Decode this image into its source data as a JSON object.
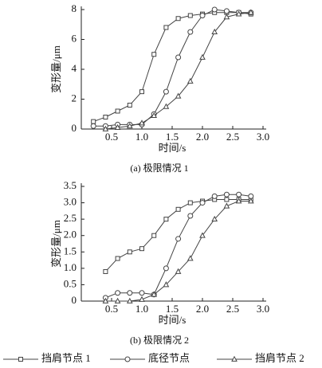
{
  "chart_data": [
    {
      "type": "line",
      "title": "(a) 极限情况 1",
      "x_label": "时间/s",
      "y_label": "变形量/μm",
      "x": [
        0.2,
        0.4,
        0.6,
        0.8,
        1.0,
        1.2,
        1.4,
        1.6,
        1.8,
        2.0,
        2.2,
        2.4,
        2.6,
        2.8
      ],
      "xlim": [
        0,
        3
      ],
      "xticks": [
        0.5,
        {
          "value": 1,
          "label": "1.0"
        },
        1.5,
        {
          "value": 2,
          "label": "2.0"
        },
        2.5,
        {
          "value": 3,
          "label": "3.0"
        }
      ],
      "ylim": [
        0,
        8
      ],
      "yticks": [
        0,
        2,
        4,
        6,
        8
      ],
      "series": [
        {
          "color": "#444444",
          "marker": "square",
          "values": [
            0.5,
            0.8,
            1.2,
            1.6,
            2.5,
            5.0,
            6.8,
            7.4,
            7.6,
            7.7,
            7.8,
            7.8,
            7.8,
            7.7
          ]
        },
        {
          "color": "#444444",
          "marker": "circle",
          "values": [
            0.2,
            0.2,
            0.3,
            0.3,
            0.3,
            1.0,
            2.5,
            4.8,
            6.5,
            7.6,
            8.0,
            7.9,
            7.8,
            7.8
          ]
        },
        {
          "color": "#444444",
          "marker": "triangle",
          "values": [
            null,
            0.0,
            0.1,
            0.2,
            0.4,
            0.9,
            1.5,
            2.2,
            3.2,
            4.8,
            6.5,
            7.5,
            7.7,
            7.8
          ]
        }
      ]
    },
    {
      "type": "line",
      "title": "(b) 极限情况 2",
      "x_label": "时间/s",
      "y_label": "变形量/μm",
      "x": [
        0.2,
        0.4,
        0.6,
        0.8,
        1.0,
        1.2,
        1.4,
        1.6,
        1.8,
        2.0,
        2.2,
        2.4,
        2.6,
        2.8
      ],
      "xlim": [
        0,
        3
      ],
      "xticks": [
        0.5,
        {
          "value": 1,
          "label": "1.0"
        },
        1.5,
        {
          "value": 2,
          "label": "2.0"
        },
        2.5,
        {
          "value": 3,
          "label": "3.0"
        }
      ],
      "ylim": [
        0,
        3.5
      ],
      "yticks": [
        0,
        0.5,
        {
          "value": 1,
          "label": "1.0"
        },
        1.5,
        {
          "value": 2,
          "label": "2.0"
        },
        2.5,
        {
          "value": 3,
          "label": "3.0"
        },
        3.5
      ],
      "series": [
        {
          "name": "挡肩节点 1",
          "color": "#444444",
          "marker": "square",
          "values": [
            null,
            0.9,
            1.3,
            1.5,
            1.6,
            2.0,
            2.5,
            2.8,
            3.0,
            3.05,
            3.1,
            3.1,
            3.1,
            3.1
          ]
        },
        {
          "name": "底径节点",
          "color": "#444444",
          "marker": "circle",
          "values": [
            null,
            0.1,
            0.25,
            0.25,
            0.25,
            0.2,
            1.0,
            1.9,
            2.6,
            3.0,
            3.2,
            3.25,
            3.25,
            3.2
          ]
        },
        {
          "name": "挡肩节点 2",
          "color": "#444444",
          "marker": "triangle",
          "values": [
            null,
            0.0,
            0.0,
            0.0,
            0.05,
            0.2,
            0.5,
            0.9,
            1.3,
            2.0,
            2.5,
            2.9,
            3.05,
            3.05
          ]
        }
      ]
    }
  ]
}
